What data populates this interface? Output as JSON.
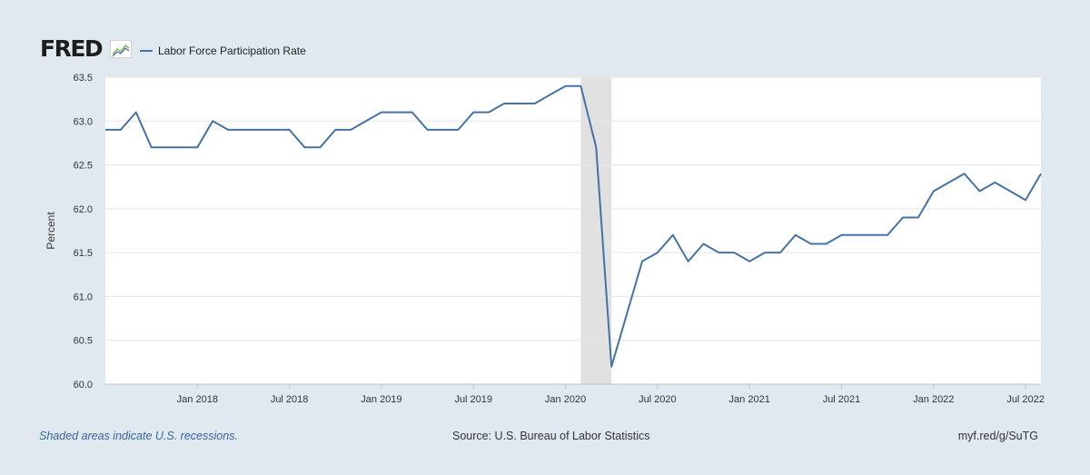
{
  "logo": {
    "text": "FRED"
  },
  "footer": {
    "recession_note": "Shaded areas indicate U.S. recessions.",
    "source": "Source: U.S. Bureau of Labor Statistics",
    "short_url": "myf.red/g/SuTG"
  },
  "colors": {
    "series": "#4572a7",
    "recession": "#e1e1e1",
    "background": "#e1e9f0",
    "plot": "#ffffff",
    "grid": "#e6e6e6"
  },
  "chart_data": {
    "type": "line",
    "ylabel": "Percent",
    "ylim": [
      60.0,
      63.5
    ],
    "yticks": [
      "60.0",
      "60.5",
      "61.0",
      "61.5",
      "62.0",
      "62.5",
      "63.0",
      "63.5"
    ],
    "xlim": [
      "2017-07",
      "2022-08"
    ],
    "xticks": [
      {
        "label": "Jan 2018",
        "date": "2018-01"
      },
      {
        "label": "Jul 2018",
        "date": "2018-07"
      },
      {
        "label": "Jan 2019",
        "date": "2019-01"
      },
      {
        "label": "Jul 2019",
        "date": "2019-07"
      },
      {
        "label": "Jan 2020",
        "date": "2020-01"
      },
      {
        "label": "Jul 2020",
        "date": "2020-07"
      },
      {
        "label": "Jan 2021",
        "date": "2021-01"
      },
      {
        "label": "Jul 2021",
        "date": "2021-07"
      },
      {
        "label": "Jan 2022",
        "date": "2022-01"
      },
      {
        "label": "Jul 2022",
        "date": "2022-07"
      }
    ],
    "recessions": [
      {
        "start": "2020-02",
        "end": "2020-04"
      }
    ],
    "grid": true,
    "legend": "top-left",
    "series": [
      {
        "name": "Labor Force Participation Rate",
        "x": [
          "2017-07",
          "2017-08",
          "2017-09",
          "2017-10",
          "2017-11",
          "2017-12",
          "2018-01",
          "2018-02",
          "2018-03",
          "2018-04",
          "2018-05",
          "2018-06",
          "2018-07",
          "2018-08",
          "2018-09",
          "2018-10",
          "2018-11",
          "2018-12",
          "2019-01",
          "2019-02",
          "2019-03",
          "2019-04",
          "2019-05",
          "2019-06",
          "2019-07",
          "2019-08",
          "2019-09",
          "2019-10",
          "2019-11",
          "2019-12",
          "2020-01",
          "2020-02",
          "2020-03",
          "2020-04",
          "2020-05",
          "2020-06",
          "2020-07",
          "2020-08",
          "2020-09",
          "2020-10",
          "2020-11",
          "2020-12",
          "2021-01",
          "2021-02",
          "2021-03",
          "2021-04",
          "2021-05",
          "2021-06",
          "2021-07",
          "2021-08",
          "2021-09",
          "2021-10",
          "2021-11",
          "2021-12",
          "2022-01",
          "2022-02",
          "2022-03",
          "2022-04",
          "2022-05",
          "2022-06",
          "2022-07",
          "2022-08"
        ],
        "values": [
          62.9,
          62.9,
          63.1,
          62.7,
          62.7,
          62.7,
          62.7,
          63.0,
          62.9,
          62.9,
          62.9,
          62.9,
          62.9,
          62.7,
          62.7,
          62.9,
          62.9,
          63.0,
          63.1,
          63.1,
          63.1,
          62.9,
          62.9,
          62.9,
          63.1,
          63.1,
          63.2,
          63.2,
          63.2,
          63.3,
          63.4,
          63.4,
          62.7,
          60.2,
          60.8,
          61.4,
          61.5,
          61.7,
          61.4,
          61.6,
          61.5,
          61.5,
          61.4,
          61.5,
          61.5,
          61.7,
          61.6,
          61.6,
          61.7,
          61.7,
          61.7,
          61.7,
          61.9,
          61.9,
          62.2,
          62.3,
          62.4,
          62.2,
          62.3,
          62.2,
          62.1,
          62.4
        ]
      }
    ]
  }
}
